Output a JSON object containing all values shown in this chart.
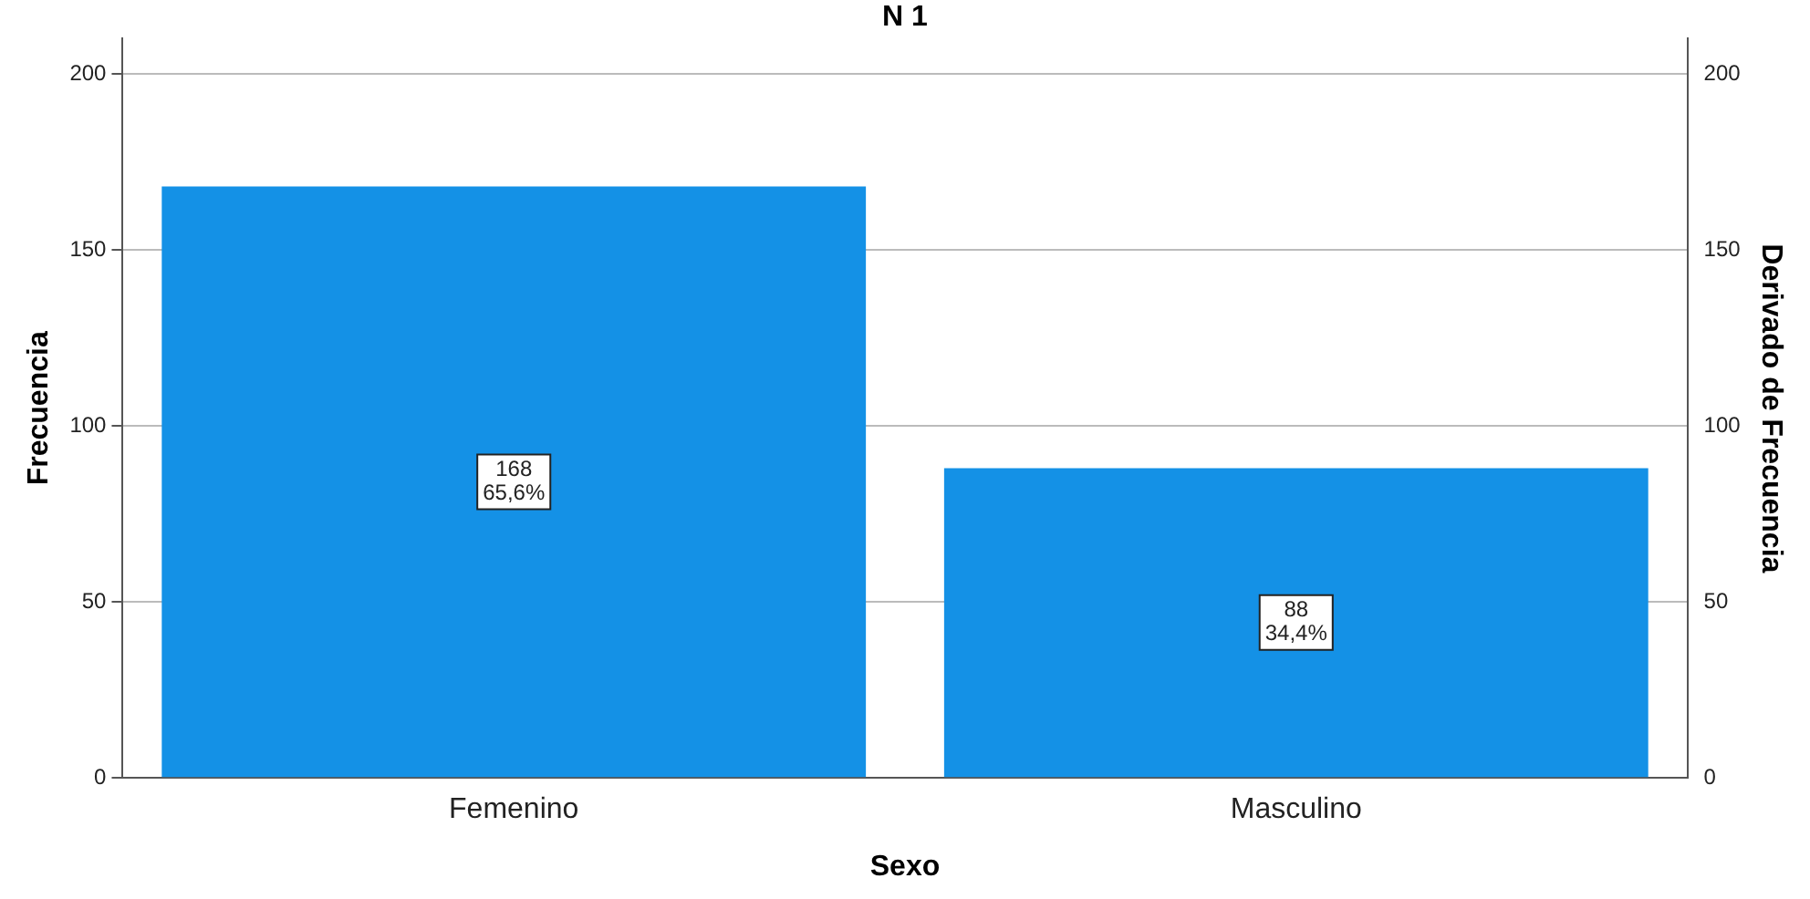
{
  "chart_data": {
    "type": "bar",
    "title": "N 1",
    "xlabel": "Sexo",
    "ylabel": "Frecuencia",
    "y2label": "Derivado de Frecuencia",
    "categories": [
      "Femenino",
      "Masculino"
    ],
    "series": [
      {
        "color": "#1491e6",
        "values": [
          168,
          88
        ],
        "value_labels": [
          "168\n65,6%",
          "88\n34,4%"
        ]
      }
    ],
    "ylim": [
      0,
      210
    ],
    "yticks": [
      0,
      50,
      100,
      150,
      200
    ],
    "y2lim": [
      0,
      210
    ],
    "y2ticks": [
      0,
      50,
      100,
      150,
      200
    ],
    "grid": "y",
    "legend": false
  }
}
